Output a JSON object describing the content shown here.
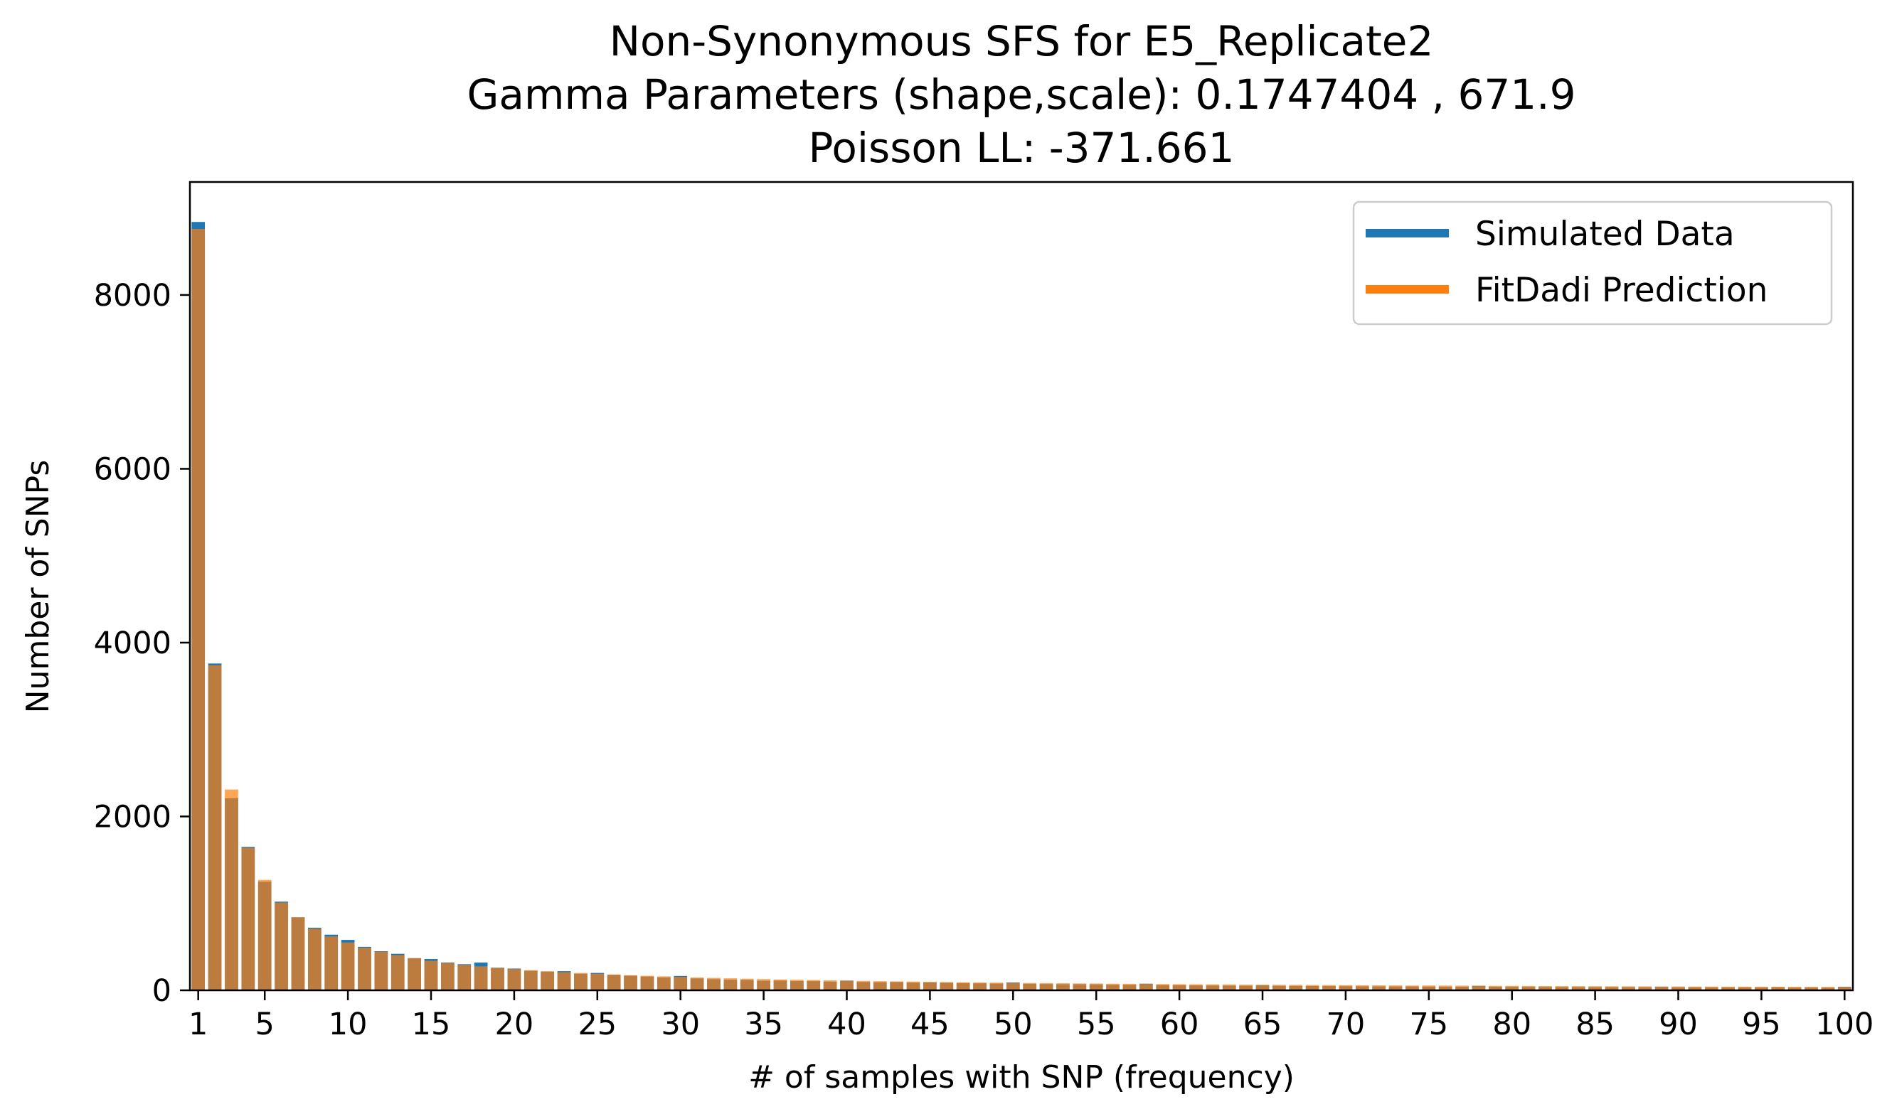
{
  "chart_data": {
    "type": "bar",
    "title_lines": [
      "Non-Synonymous SFS for E5_Replicate2",
      "Gamma Parameters (shape,scale): 0.1747404 , 671.9",
      "Poisson LL: -371.661"
    ],
    "xlabel": "# of samples with SNP (frequency)",
    "ylabel": "Number of SNPs",
    "xlim": [
      0.5,
      100.5
    ],
    "ylim": [
      0,
      9300
    ],
    "x_ticks": [
      1,
      5,
      10,
      15,
      20,
      25,
      30,
      35,
      40,
      45,
      50,
      55,
      60,
      65,
      70,
      75,
      80,
      85,
      90,
      95,
      100
    ],
    "y_ticks": [
      0,
      2000,
      4000,
      6000,
      8000
    ],
    "grid": false,
    "legend_position": "top-right",
    "colors": {
      "simulated": "#1f77b4",
      "fitdadi": "#ff7f0e",
      "fitdadi_alpha": 0.7
    },
    "series": [
      {
        "name": "Simulated Data",
        "x": [
          1,
          2,
          3,
          4,
          5,
          6,
          7,
          8,
          9,
          10,
          11,
          12,
          13,
          14,
          15,
          16,
          17,
          18,
          19,
          20,
          21,
          22,
          23,
          24,
          25,
          26,
          27,
          28,
          29,
          30,
          31,
          32,
          33,
          34,
          35,
          36,
          37,
          38,
          39,
          40,
          41,
          42,
          43,
          44,
          45,
          46,
          47,
          48,
          49,
          50,
          51,
          52,
          53,
          54,
          55,
          56,
          57,
          58,
          59,
          60,
          61,
          62,
          63,
          64,
          65,
          66,
          67,
          68,
          69,
          70,
          71,
          72,
          73,
          74,
          75,
          76,
          77,
          78,
          79,
          80,
          81,
          82,
          83,
          84,
          85,
          86,
          87,
          88,
          89,
          90,
          91,
          92,
          93,
          94,
          95,
          96,
          97,
          98,
          99,
          100
        ],
        "values": [
          8840,
          3760,
          2210,
          1650,
          1250,
          1020,
          840,
          720,
          640,
          580,
          500,
          450,
          420,
          370,
          360,
          320,
          300,
          320,
          260,
          250,
          225,
          215,
          220,
          190,
          200,
          178,
          168,
          158,
          148,
          165,
          136,
          128,
          122,
          118,
          110,
          112,
          106,
          105,
          100,
          112,
          96,
          93,
          95,
          88,
          91,
          86,
          82,
          80,
          78,
          90,
          74,
          72,
          70,
          70,
          68,
          64,
          62,
          76,
          59,
          58,
          56,
          55,
          54,
          52,
          58,
          51,
          50,
          49,
          48,
          47,
          46,
          45,
          44,
          44,
          43,
          42,
          41,
          52,
          40,
          39,
          38,
          38,
          37,
          37,
          36,
          36,
          35,
          35,
          40,
          34,
          34,
          33,
          33,
          32,
          32,
          35,
          31,
          31,
          30,
          40
        ]
      },
      {
        "name": "FitDadi Prediction",
        "x": [
          1,
          2,
          3,
          4,
          5,
          6,
          7,
          8,
          9,
          10,
          11,
          12,
          13,
          14,
          15,
          16,
          17,
          18,
          19,
          20,
          21,
          22,
          23,
          24,
          25,
          26,
          27,
          28,
          29,
          30,
          31,
          32,
          33,
          34,
          35,
          36,
          37,
          38,
          39,
          40,
          41,
          42,
          43,
          44,
          45,
          46,
          47,
          48,
          49,
          50,
          51,
          52,
          53,
          54,
          55,
          56,
          57,
          58,
          59,
          60,
          61,
          62,
          63,
          64,
          65,
          66,
          67,
          68,
          69,
          70,
          71,
          72,
          73,
          74,
          75,
          76,
          77,
          78,
          79,
          80,
          81,
          82,
          83,
          84,
          85,
          86,
          87,
          88,
          89,
          90,
          91,
          92,
          93,
          94,
          95,
          96,
          97,
          98,
          99,
          100
        ],
        "values": [
          8760,
          3740,
          2310,
          1640,
          1270,
          1010,
          840,
          710,
          620,
          550,
          490,
          445,
          405,
          370,
          340,
          315,
          293,
          275,
          258,
          244,
          231,
          219,
          209,
          199,
          190,
          182,
          174,
          167,
          160,
          154,
          148,
          143,
          138,
          133,
          129,
          125,
          121,
          118,
          114,
          111,
          108,
          105,
          102,
          100,
          97,
          95,
          93,
          90,
          88,
          86,
          84,
          83,
          81,
          79,
          78,
          76,
          75,
          73,
          72,
          70,
          69,
          68,
          67,
          65,
          64,
          63,
          62,
          61,
          60,
          59,
          58,
          57,
          56,
          55,
          55,
          54,
          53,
          52,
          51,
          51,
          50,
          49,
          48,
          48,
          47,
          46,
          46,
          45,
          44,
          44,
          43,
          43,
          42,
          42,
          41,
          41,
          40,
          40,
          39,
          39
        ]
      }
    ]
  }
}
